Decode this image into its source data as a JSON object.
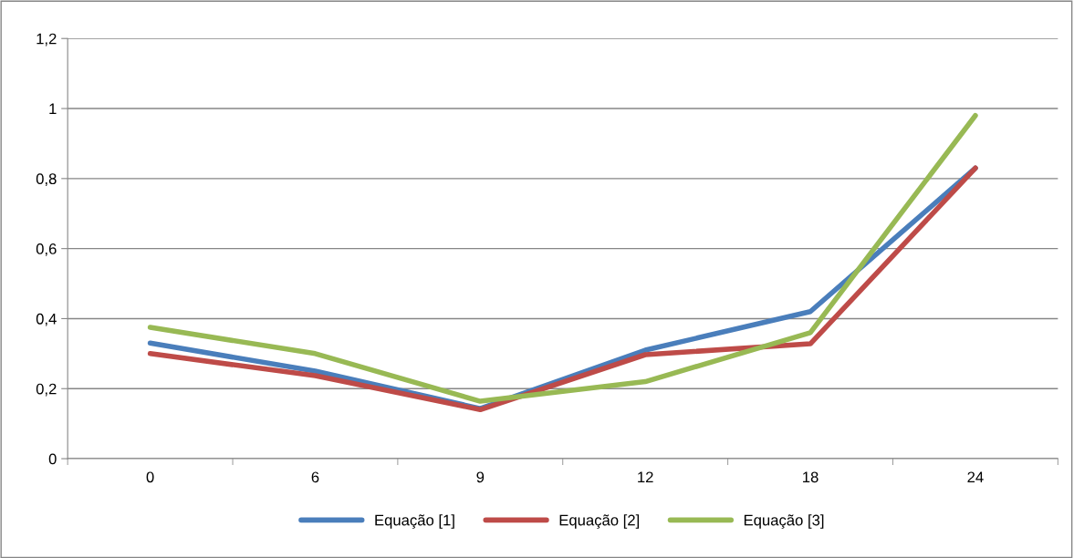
{
  "chart_data": {
    "type": "line",
    "categories": [
      "0",
      "6",
      "9",
      "12",
      "18",
      "24"
    ],
    "series": [
      {
        "name": "Equação [1]",
        "color": "#4a7ebb",
        "values": [
          0.33,
          0.25,
          0.143,
          0.31,
          0.42,
          0.83
        ]
      },
      {
        "name": "Equação [2]",
        "color": "#be4b48",
        "values": [
          0.3,
          0.237,
          0.14,
          0.297,
          0.328,
          0.83
        ]
      },
      {
        "name": "Equação [3]",
        "color": "#98b954",
        "values": [
          0.375,
          0.3,
          0.164,
          0.22,
          0.36,
          0.98
        ]
      }
    ],
    "ylim": [
      0,
      1.2
    ],
    "yticks": [
      0,
      {
        "value": 0.2,
        "label": "0,2"
      },
      {
        "value": 0.4,
        "label": "0,4"
      },
      {
        "value": 0.6,
        "label": "0,6"
      },
      {
        "value": 0.8,
        "label": "0,8"
      },
      1,
      {
        "value": 1.2,
        "label": "1,2"
      }
    ],
    "grid": "y",
    "legend": "bottom",
    "marker": "none",
    "line_style": "solid"
  }
}
